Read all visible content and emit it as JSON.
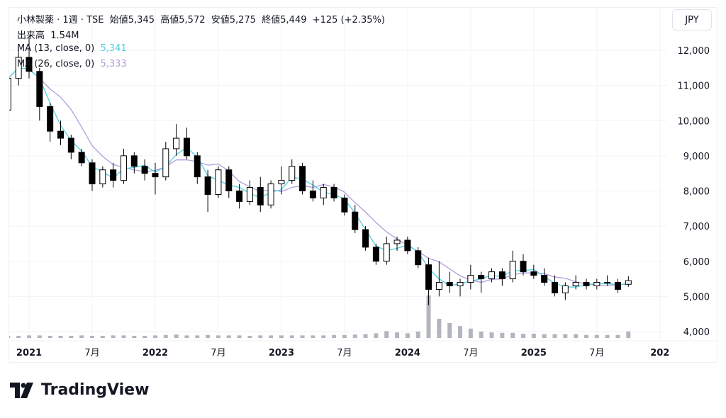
{
  "header": {
    "symbol_line": "小林製薬 · 1週 · TSE",
    "open_label": "始値",
    "open": "5,345",
    "high_label": "高値",
    "high": "5,572",
    "low_label": "安値",
    "low": "5,275",
    "close_label": "終値",
    "close": "5,449",
    "change": "+125 (+2.35%)",
    "volume_label": "出来高",
    "volume": "1.54M"
  },
  "indicators": [
    {
      "label": "MA (13, close, 0)",
      "value": "5,341",
      "color": "#4dd0e1"
    },
    {
      "label": "MA (26, close, 0)",
      "value": "5,333",
      "color": "#b39ddb"
    }
  ],
  "currency_button": "JPY",
  "brand": "TradingView",
  "chart_data": {
    "type": "candlestick",
    "interval": "1週",
    "y_ticks": [
      "4,000",
      "5,000",
      "6,000",
      "7,000",
      "8,000",
      "9,000",
      "10,000",
      "11,000",
      "12,000"
    ],
    "x_ticks": [
      {
        "label": "2021",
        "date": "2021-01"
      },
      {
        "label": "7月",
        "date": "2021-07"
      },
      {
        "label": "2022",
        "date": "2022-01"
      },
      {
        "label": "7月",
        "date": "2022-07"
      },
      {
        "label": "2023",
        "date": "2023-01"
      },
      {
        "label": "7月",
        "date": "2023-07"
      },
      {
        "label": "2024",
        "date": "2024-01"
      },
      {
        "label": "7月",
        "date": "2024-07"
      },
      {
        "label": "2025",
        "date": "2025-01"
      },
      {
        "label": "7月",
        "date": "2025-07"
      },
      {
        "label": "202",
        "date": "2026-01"
      }
    ],
    "ylim": [
      3700,
      12800
    ],
    "grid": true,
    "up_color": "#ffffff",
    "down_color": "#000000",
    "start": "2020-11",
    "ohlc": [
      [
        10300,
        11300,
        10200,
        11200
      ],
      [
        11200,
        12100,
        11000,
        11800
      ],
      [
        11800,
        12400,
        11200,
        11400
      ],
      [
        11400,
        11500,
        10000,
        10400
      ],
      [
        10400,
        10500,
        9400,
        9700
      ],
      [
        9700,
        10000,
        9300,
        9500
      ],
      [
        9500,
        9600,
        8900,
        9100
      ],
      [
        9100,
        9200,
        8700,
        8800
      ],
      [
        8800,
        8900,
        8000,
        8200
      ],
      [
        8200,
        8700,
        8100,
        8600
      ],
      [
        8600,
        8800,
        8100,
        8300
      ],
      [
        8300,
        9200,
        8200,
        9000
      ],
      [
        9000,
        9100,
        8500,
        8700
      ],
      [
        8700,
        8900,
        8300,
        8500
      ],
      [
        8500,
        8800,
        7900,
        8400
      ],
      [
        8400,
        9400,
        8300,
        9200
      ],
      [
        9200,
        9900,
        9000,
        9500
      ],
      [
        9500,
        9800,
        8900,
        9000
      ],
      [
        9000,
        9100,
        8200,
        8400
      ],
      [
        8400,
        8600,
        7400,
        7900
      ],
      [
        7900,
        8700,
        7800,
        8600
      ],
      [
        8600,
        8700,
        7800,
        8000
      ],
      [
        8000,
        8200,
        7500,
        7700
      ],
      [
        7700,
        8300,
        7600,
        8100
      ],
      [
        8100,
        8400,
        7400,
        7600
      ],
      [
        7600,
        8300,
        7500,
        8200
      ],
      [
        8200,
        8700,
        7900,
        8300
      ],
      [
        8300,
        8900,
        8200,
        8700
      ],
      [
        8700,
        8800,
        7900,
        8000
      ],
      [
        8000,
        8300,
        7700,
        7800
      ],
      [
        7800,
        8200,
        7600,
        8100
      ],
      [
        8100,
        8200,
        7700,
        7800
      ],
      [
        7800,
        7900,
        7300,
        7400
      ],
      [
        7400,
        7600,
        6800,
        6900
      ],
      [
        6900,
        7000,
        6300,
        6400
      ],
      [
        6400,
        6500,
        5900,
        6000
      ],
      [
        6000,
        6700,
        5900,
        6500
      ],
      [
        6500,
        6700,
        6300,
        6600
      ],
      [
        6600,
        6700,
        6200,
        6300
      ],
      [
        6300,
        6400,
        5800,
        5900
      ],
      [
        5900,
        6100,
        4750,
        5200
      ],
      [
        5200,
        6000,
        5000,
        5400
      ],
      [
        5400,
        5700,
        5100,
        5300
      ],
      [
        5300,
        5500,
        5000,
        5400
      ],
      [
        5400,
        5900,
        5200,
        5600
      ],
      [
        5600,
        5700,
        5100,
        5500
      ],
      [
        5500,
        5800,
        5400,
        5700
      ],
      [
        5700,
        5800,
        5300,
        5500
      ],
      [
        5500,
        6300,
        5400,
        6000
      ],
      [
        6000,
        6200,
        5600,
        5700
      ],
      [
        5700,
        5900,
        5500,
        5600
      ],
      [
        5600,
        5800,
        5300,
        5400
      ],
      [
        5400,
        5600,
        5000,
        5100
      ],
      [
        5100,
        5400,
        4900,
        5300
      ],
      [
        5300,
        5600,
        5200,
        5400
      ],
      [
        5400,
        5500,
        5200,
        5300
      ],
      [
        5300,
        5500,
        5200,
        5400
      ],
      [
        5400,
        5600,
        5300,
        5400
      ],
      [
        5400,
        5500,
        5100,
        5200
      ],
      [
        5345,
        5572,
        5275,
        5449
      ]
    ],
    "volume": [
      0.5,
      0.5,
      0.6,
      0.6,
      0.5,
      0.5,
      0.5,
      0.6,
      0.5,
      0.5,
      0.6,
      0.6,
      0.5,
      0.5,
      0.6,
      0.7,
      0.8,
      0.6,
      0.6,
      0.7,
      0.6,
      0.6,
      0.6,
      0.5,
      0.6,
      0.6,
      0.6,
      0.6,
      0.6,
      0.6,
      0.6,
      0.7,
      0.7,
      0.8,
      0.9,
      1.1,
      1.6,
      1.3,
      1.1,
      1.5,
      10,
      4.5,
      3.5,
      2.8,
      2.2,
      1.5,
      1.3,
      1.2,
      1.2,
      1.0,
      1.0,
      0.9,
      0.9,
      0.9,
      0.9,
      0.7,
      0.7,
      0.7,
      0.7,
      1.54
    ]
  }
}
